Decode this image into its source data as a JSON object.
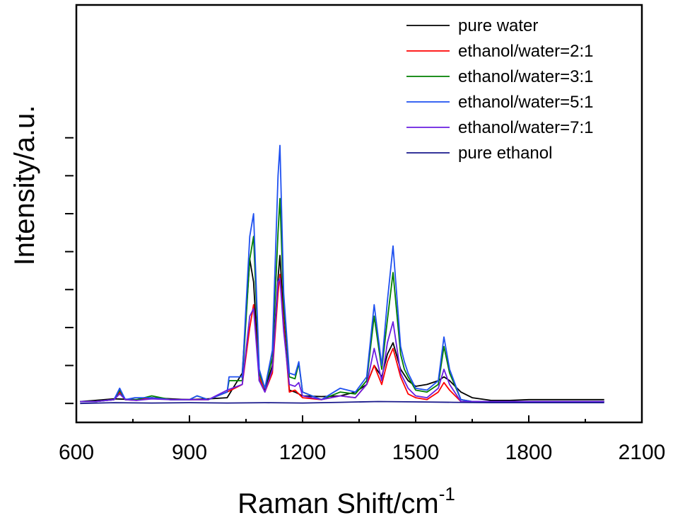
{
  "chart_data": {
    "type": "line",
    "title": "",
    "xlabel": "Raman Shift/cm",
    "xlabel_superscript": "-1",
    "ylabel": "Intensity/a.u.",
    "xlim": [
      600,
      2100
    ],
    "ylim": [
      -0.5,
      10.5
    ],
    "xticks": [
      600,
      900,
      1200,
      1500,
      1800,
      2100
    ],
    "yticks_unlabeled": [
      0,
      1,
      2,
      3,
      4,
      5,
      6,
      7
    ],
    "grid": false,
    "legend_position": "top-right",
    "series": [
      {
        "name": "pure water",
        "color": "#000000",
        "x": [
          610,
          650,
          700,
          760,
          800,
          850,
          900,
          950,
          1000,
          1040,
          1060,
          1070,
          1085,
          1100,
          1120,
          1135,
          1140,
          1150,
          1165,
          1180,
          1190,
          1200,
          1250,
          1300,
          1340,
          1370,
          1390,
          1410,
          1425,
          1440,
          1460,
          1480,
          1500,
          1530,
          1560,
          1575,
          1590,
          1620,
          1650,
          1700,
          1750,
          1800,
          1850,
          1900,
          1950,
          2000
        ],
        "y": [
          0.05,
          0.08,
          0.12,
          0.1,
          0.15,
          0.12,
          0.1,
          0.12,
          0.15,
          0.8,
          3.8,
          3.2,
          0.6,
          0.35,
          1.0,
          3.3,
          3.9,
          2.2,
          0.35,
          0.3,
          0.25,
          0.2,
          0.18,
          0.2,
          0.3,
          0.5,
          1.0,
          0.7,
          1.3,
          1.6,
          0.9,
          0.6,
          0.45,
          0.5,
          0.6,
          0.7,
          0.6,
          0.3,
          0.15,
          0.08,
          0.08,
          0.1,
          0.1,
          0.1,
          0.1,
          0.1
        ]
      },
      {
        "name": "ethanol/water=2:1",
        "color": "#ff0000",
        "x": [
          610,
          650,
          700,
          715,
          730,
          760,
          800,
          850,
          900,
          950,
          1000,
          1040,
          1060,
          1070,
          1085,
          1100,
          1120,
          1135,
          1140,
          1150,
          1165,
          1180,
          1190,
          1200,
          1250,
          1300,
          1340,
          1370,
          1390,
          1410,
          1425,
          1440,
          1460,
          1480,
          1500,
          1530,
          1560,
          1575,
          1590,
          1620,
          1650,
          1700,
          1800,
          1900,
          2000
        ],
        "y": [
          0.05,
          0.05,
          0.1,
          0.3,
          0.1,
          0.08,
          0.15,
          0.1,
          0.1,
          0.1,
          0.3,
          0.5,
          2.0,
          2.6,
          0.7,
          0.3,
          0.8,
          2.9,
          3.4,
          2.1,
          0.3,
          0.35,
          0.25,
          0.15,
          0.1,
          0.2,
          0.15,
          0.5,
          1.0,
          0.5,
          1.1,
          1.45,
          0.7,
          0.25,
          0.15,
          0.1,
          0.3,
          0.55,
          0.35,
          0.05,
          0.05,
          0.05,
          0.05,
          0.05,
          0.05
        ]
      },
      {
        "name": "ethanol/water=3:1",
        "color": "#008000",
        "x": [
          610,
          650,
          700,
          715,
          730,
          760,
          800,
          850,
          900,
          920,
          950,
          1000,
          1005,
          1040,
          1060,
          1070,
          1085,
          1100,
          1120,
          1135,
          1140,
          1150,
          1165,
          1180,
          1190,
          1200,
          1250,
          1300,
          1340,
          1370,
          1390,
          1410,
          1425,
          1440,
          1460,
          1470,
          1480,
          1500,
          1530,
          1560,
          1575,
          1590,
          1620,
          1650,
          1700,
          1800,
          1900,
          2000
        ],
        "y": [
          0.05,
          0.05,
          0.1,
          0.35,
          0.1,
          0.1,
          0.2,
          0.1,
          0.1,
          0.2,
          0.1,
          0.3,
          0.6,
          0.6,
          3.8,
          4.4,
          0.8,
          0.4,
          1.2,
          4.5,
          5.4,
          2.6,
          0.7,
          0.65,
          1.05,
          0.3,
          0.1,
          0.3,
          0.25,
          0.6,
          2.3,
          0.9,
          2.2,
          3.45,
          1.3,
          0.9,
          0.7,
          0.35,
          0.3,
          0.5,
          1.5,
          0.8,
          0.1,
          0.05,
          0.05,
          0.05,
          0.05,
          0.05
        ]
      },
      {
        "name": "ethanol/water=5:1",
        "color": "#1e50f0",
        "x": [
          610,
          650,
          700,
          715,
          730,
          755,
          800,
          850,
          900,
          920,
          950,
          1000,
          1005,
          1040,
          1060,
          1070,
          1085,
          1100,
          1120,
          1135,
          1140,
          1150,
          1165,
          1180,
          1190,
          1200,
          1250,
          1300,
          1340,
          1370,
          1390,
          1410,
          1425,
          1440,
          1460,
          1470,
          1480,
          1500,
          1530,
          1560,
          1575,
          1590,
          1620,
          1650,
          1700,
          1800,
          1900,
          2000
        ],
        "y": [
          0.05,
          0.05,
          0.1,
          0.4,
          0.1,
          0.15,
          0.15,
          0.1,
          0.1,
          0.2,
          0.1,
          0.3,
          0.7,
          0.7,
          4.4,
          5.0,
          0.9,
          0.4,
          1.4,
          6.0,
          6.8,
          2.9,
          0.8,
          0.75,
          1.1,
          0.3,
          0.1,
          0.4,
          0.3,
          0.7,
          2.6,
          1.0,
          2.7,
          4.15,
          1.5,
          1.1,
          0.8,
          0.4,
          0.35,
          0.6,
          1.75,
          0.9,
          0.1,
          0.05,
          0.05,
          0.05,
          0.05,
          0.05
        ]
      },
      {
        "name": "ethanol/water=7:1",
        "color": "#6a1ee0",
        "x": [
          610,
          650,
          700,
          715,
          730,
          760,
          800,
          850,
          900,
          950,
          1000,
          1040,
          1060,
          1070,
          1085,
          1100,
          1120,
          1135,
          1140,
          1150,
          1165,
          1180,
          1190,
          1200,
          1250,
          1300,
          1340,
          1370,
          1390,
          1410,
          1425,
          1440,
          1460,
          1480,
          1500,
          1530,
          1560,
          1575,
          1590,
          1620,
          1650,
          1700,
          1800,
          1900,
          2000
        ],
        "y": [
          0.05,
          0.05,
          0.1,
          0.25,
          0.1,
          0.08,
          0.12,
          0.1,
          0.1,
          0.1,
          0.35,
          0.5,
          2.3,
          2.5,
          0.6,
          0.3,
          0.9,
          3.2,
          3.3,
          1.9,
          0.5,
          0.45,
          0.55,
          0.2,
          0.1,
          0.2,
          0.15,
          0.5,
          1.45,
          0.6,
          1.6,
          2.15,
          0.8,
          0.4,
          0.2,
          0.15,
          0.4,
          0.9,
          0.5,
          0.05,
          0.05,
          0.05,
          0.05,
          0.05,
          0.05
        ]
      },
      {
        "name": "pure ethanol",
        "color": "#1a1a8c",
        "x": [
          610,
          700,
          800,
          900,
          1000,
          1100,
          1200,
          1300,
          1400,
          1500,
          1600,
          1700,
          1800,
          1900,
          2000
        ],
        "y": [
          0.0,
          0.02,
          0.01,
          0.02,
          0.01,
          0.02,
          0.01,
          0.03,
          0.05,
          0.04,
          0.03,
          0.02,
          0.02,
          0.02,
          0.02
        ]
      }
    ]
  }
}
